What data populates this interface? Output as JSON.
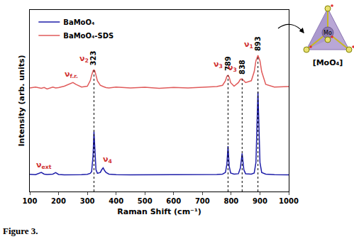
{
  "chart_data": {
    "type": "line",
    "x_label": "Raman Shift (cm⁻¹)",
    "y_label": "Intensity (arb. units)",
    "x": [
      100,
      120,
      140,
      150,
      160,
      180,
      190,
      200,
      220,
      240,
      250,
      260,
      280,
      300,
      310,
      315,
      320,
      323,
      326,
      330,
      335,
      345,
      350,
      355,
      360,
      365,
      375,
      400,
      450,
      500,
      550,
      600,
      650,
      700,
      750,
      770,
      780,
      785,
      789,
      793,
      798,
      810,
      825,
      832,
      838,
      844,
      850,
      870,
      880,
      886,
      893,
      900,
      906,
      920,
      950,
      1000
    ],
    "series": [
      {
        "name": "BaMoO₄",
        "color": "#1c1ca8",
        "values": [
          9.5,
          9.3,
          10.5,
          9.6,
          9.4,
          9.6,
          10.4,
          9.4,
          9.2,
          9.2,
          9.2,
          9.2,
          9.3,
          9.5,
          10,
          11,
          20,
          33,
          22,
          12,
          10,
          10.5,
          12,
          13,
          11.5,
          10.5,
          9.6,
          9.3,
          9.2,
          9.2,
          9.2,
          9.2,
          9.2,
          9.3,
          9.4,
          9.6,
          10.5,
          15,
          25,
          14,
          10.2,
          9.6,
          9.8,
          13,
          21,
          12,
          9.8,
          9.6,
          10.2,
          16,
          55,
          16,
          10.5,
          9.6,
          9.3,
          9.2
        ]
      },
      {
        "name": "BaMoO₄-SDS",
        "color": "#e05a5a",
        "values": [
          57,
          57.5,
          56.8,
          57.3,
          56.5,
          57.5,
          57,
          57.2,
          58,
          59.5,
          60,
          59,
          57.5,
          58,
          61,
          64,
          66.5,
          67,
          66.5,
          64,
          61,
          58.5,
          58,
          57.8,
          57.5,
          57.2,
          57,
          57.5,
          57,
          57.4,
          56.8,
          57.3,
          57,
          57.5,
          57.8,
          58.5,
          61,
          63.5,
          64,
          63,
          60,
          58,
          60,
          61.8,
          62,
          61,
          60,
          61,
          66,
          72,
          75,
          72,
          66,
          59,
          57.5,
          57.8
        ]
      }
    ],
    "xlim": [
      100,
      1000
    ],
    "xticks": [
      100,
      200,
      300,
      400,
      500,
      600,
      700,
      800,
      900,
      1000
    ],
    "ylim": [
      0,
      100
    ],
    "tick_labels": "x",
    "legend": "upper left",
    "peaks": [
      323,
      789,
      838,
      893
    ],
    "modes": [
      {
        "symbol": "ν",
        "sub": "ext",
        "x": 150,
        "series": "BaMoO₄"
      },
      {
        "symbol": "ν",
        "sub": "f.r.",
        "x": 245,
        "series": "BaMoO₄-SDS"
      },
      {
        "symbol": "ν",
        "sub": "2",
        "x": 323,
        "series": "BaMoO₄-SDS"
      },
      {
        "symbol": "ν",
        "sub": "4",
        "x": 355,
        "series": "BaMoO₄"
      },
      {
        "symbol": "ν",
        "sub": "3",
        "x": 789,
        "series": "BaMoO₄-SDS"
      },
      {
        "symbol": "ν",
        "sub": "3",
        "x": 838,
        "series": "BaMoO₄-SDS"
      },
      {
        "symbol": "ν",
        "sub": "1",
        "x": 893,
        "series": "BaMoO₄-SDS"
      }
    ],
    "caption": "Figure 3.",
    "inset": {
      "label": "[MoO₄]",
      "center": "Mo"
    }
  }
}
